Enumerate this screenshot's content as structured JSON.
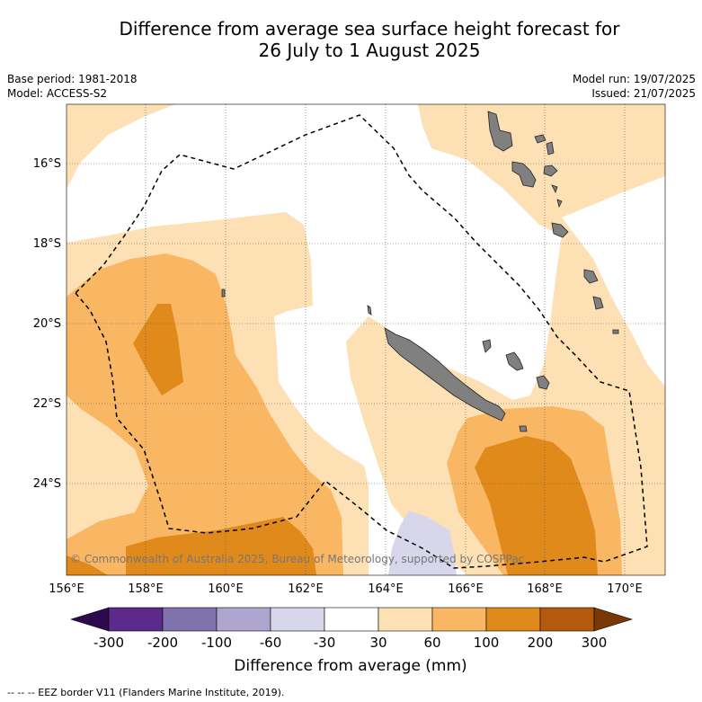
{
  "title": {
    "line1": "Difference from average sea surface height forecast for",
    "line2": "26 July to 1 August 2025"
  },
  "meta_left": {
    "base_period": "Base period: 1981-2018",
    "model": "Model: ACCESS-S2"
  },
  "meta_right": {
    "model_run": "Model run: 19/07/2025",
    "issued": "Issued: 21/07/2025"
  },
  "map": {
    "lat_labels": [
      "16°S",
      "18°S",
      "20°S",
      "22°S",
      "24°S"
    ],
    "lon_labels": [
      "156°E",
      "158°E",
      "160°E",
      "162°E",
      "164°E",
      "166°E",
      "168°E",
      "170°E"
    ],
    "copyright": "© Commonwealth of Australia 2025, Bureau of Meteorology, supported by COSPPac",
    "land_color": "#808080",
    "eez_style": "dashed"
  },
  "colorbar": {
    "ticks": [
      "-300",
      "-200",
      "-100",
      "-60",
      "-30",
      "30",
      "60",
      "100",
      "200",
      "300"
    ],
    "colors": [
      "#2d0a4e",
      "#5b2a8c",
      "#8073ad",
      "#aea6cf",
      "#d7d6ea",
      "#ffffff",
      "#fde0b4",
      "#f9b764",
      "#e08a1b",
      "#b45a0e",
      "#7a3706"
    ],
    "title": "Difference from average (mm)"
  },
  "footer": "--  --  -- EEZ border V11 (Flanders Marine Institute, 2019)."
}
